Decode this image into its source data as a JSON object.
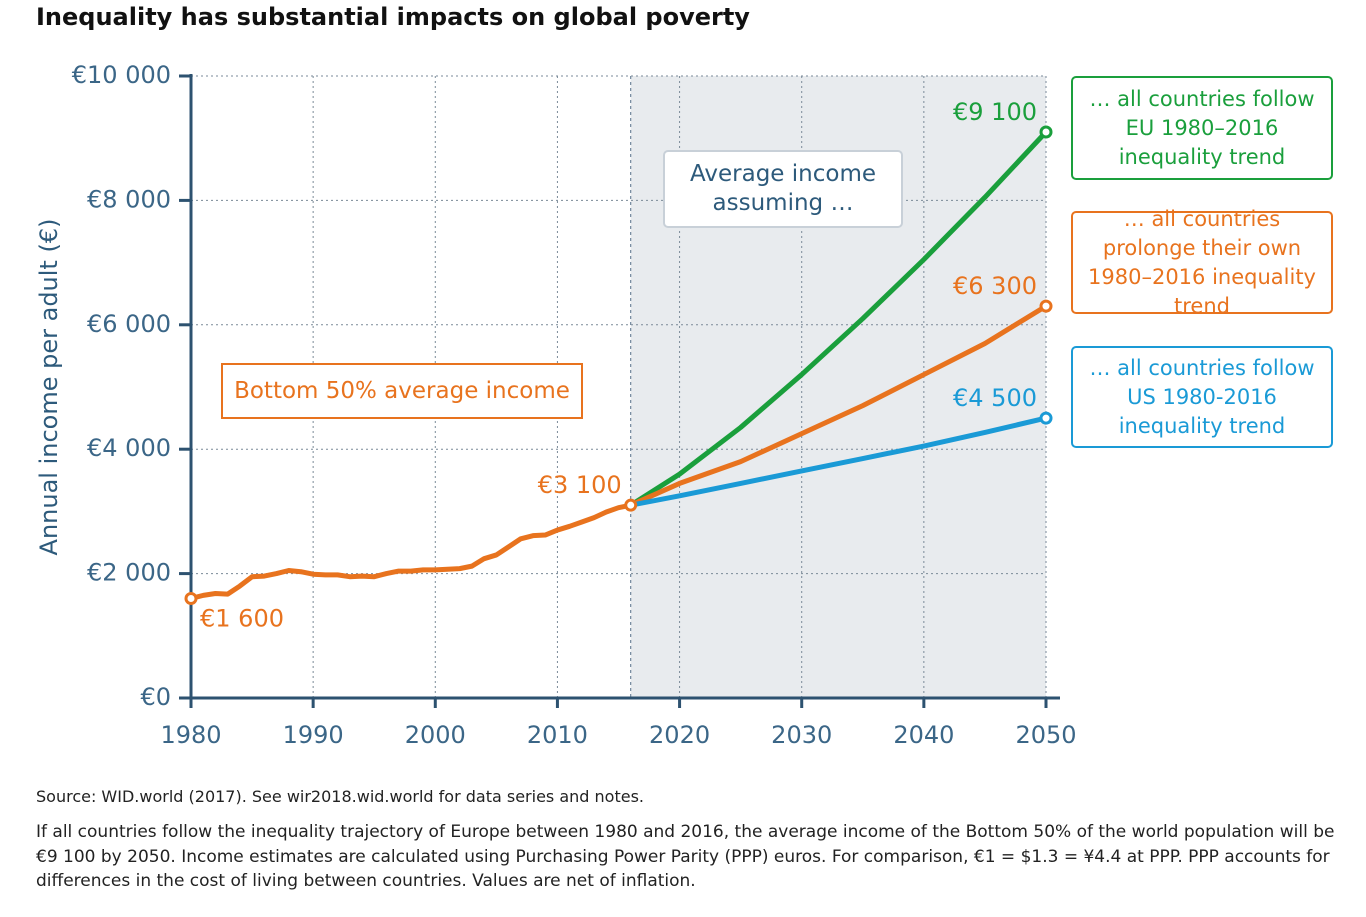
{
  "chart_data": {
    "type": "line",
    "title": "Inequality has substantial impacts on global poverty",
    "ylabel": "Annual income per adult (€)",
    "xlim": [
      1980,
      2050
    ],
    "xticks": [
      1980,
      1990,
      2000,
      2010,
      2020,
      2030,
      2040,
      2050
    ],
    "ylim": [
      0,
      10000
    ],
    "yticks": [
      {
        "value": 0,
        "label": "€0"
      },
      {
        "value": 2000,
        "label": "€2 000"
      },
      {
        "value": 4000,
        "label": "€4 000"
      },
      {
        "value": 6000,
        "label": "€6 000"
      },
      {
        "value": 8000,
        "label": "€8 000"
      },
      {
        "value": 10000,
        "label": "€10 000"
      }
    ],
    "grid": true,
    "annotation": "Average income assuming …",
    "series": [
      {
        "name": "Bottom 50%  average income",
        "color": "#e8731e",
        "x": [
          1980,
          1981,
          1982,
          1983,
          1984,
          1985,
          1986,
          1987,
          1988,
          1989,
          1990,
          1991,
          1992,
          1993,
          1994,
          1995,
          1996,
          1997,
          1998,
          1999,
          2000,
          2001,
          2002,
          2003,
          2004,
          2005,
          2006,
          2007,
          2008,
          2009,
          2010,
          2011,
          2012,
          2013,
          2014,
          2015,
          2016
        ],
        "values": [
          1600,
          1650,
          1680,
          1670,
          1800,
          1950,
          1960,
          2000,
          2050,
          2030,
          1990,
          1980,
          1980,
          1950,
          1960,
          1950,
          2000,
          2040,
          2040,
          2060,
          2060,
          2070,
          2080,
          2120,
          2240,
          2300,
          2430,
          2560,
          2610,
          2620,
          2700,
          2760,
          2830,
          2900,
          2990,
          3060,
          3100
        ],
        "value_labels": [
          "€1 600",
          null,
          null,
          null,
          null,
          null,
          null,
          null,
          null,
          null,
          null,
          null,
          null,
          null,
          null,
          null,
          null,
          null,
          null,
          null,
          null,
          null,
          null,
          null,
          null,
          null,
          null,
          null,
          null,
          null,
          null,
          null,
          null,
          null,
          null,
          null,
          "€3 100"
        ]
      },
      {
        "name": "… all countries follow EU 1980–2016 inequality trend",
        "color": "#1a9f3c",
        "x": [
          2016,
          2020,
          2025,
          2030,
          2035,
          2040,
          2045,
          2050
        ],
        "values": [
          3100,
          3600,
          4350,
          5200,
          6100,
          7050,
          8050,
          9100
        ],
        "value_labels": [
          null,
          null,
          null,
          null,
          null,
          null,
          null,
          "€9 100"
        ]
      },
      {
        "name": "… all countries prolonge their own 1980–2016 inequality trend",
        "color": "#e8731e",
        "x": [
          2016,
          2020,
          2025,
          2030,
          2035,
          2040,
          2045,
          2050
        ],
        "values": [
          3100,
          3450,
          3800,
          4250,
          4700,
          5200,
          5700,
          6300
        ],
        "value_labels": [
          null,
          null,
          null,
          null,
          null,
          null,
          null,
          "€6 300"
        ]
      },
      {
        "name": "… all countries follow US 1980-2016 inequality trend",
        "color": "#1a9ad6",
        "x": [
          2016,
          2020,
          2025,
          2030,
          2035,
          2040,
          2045,
          2050
        ],
        "values": [
          3100,
          3250,
          3450,
          3650,
          3850,
          4050,
          4270,
          4500
        ],
        "value_labels": [
          null,
          null,
          null,
          null,
          null,
          null,
          null,
          "€4 500"
        ]
      }
    ],
    "source": "Source: WID.world (2017). See wir2018.wid.world for data series and notes.",
    "note": "If all countries follow the inequality trajectory of Europe between 1980 and 2016, the average income of the Bottom 50% of the world population will be €9 100 by 2050. Income estimates are calculated using Purchasing Power Parity (PPP) euros. For comparison, €1 = $1.3 = ¥4.4 at PPP. PPP accounts for differences in the cost of living between countries. Values are net of inflation."
  }
}
